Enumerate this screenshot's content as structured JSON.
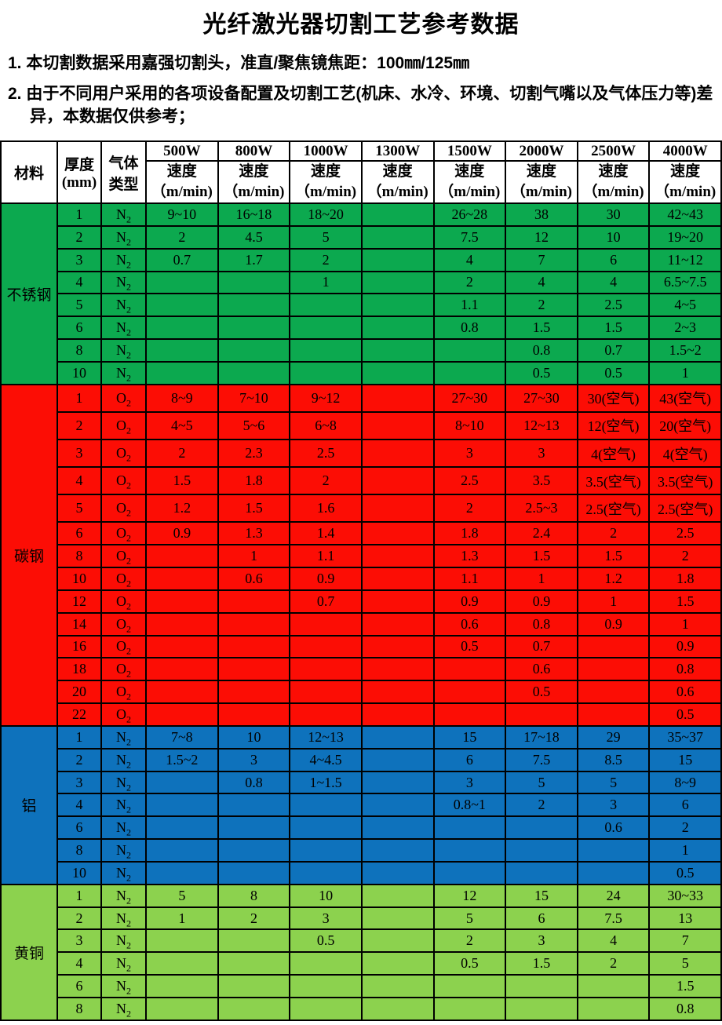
{
  "title": "光纤激光器切割工艺参考数据",
  "notes": [
    "1. 本切割数据采用嘉强切割头，准直/聚焦镜焦距：100㎜/125㎜",
    "2. 由于不同用户采用的各项设备配置及切割工艺(机床、水冷、环境、切割气嘴以及气体压力等)差异，本数据仅供参考；"
  ],
  "table": {
    "header": {
      "material": "材料",
      "thickness": "厚度\n(mm)",
      "gas": "气体\n类型",
      "powers": [
        "500W",
        "800W",
        "1000W",
        "1300W",
        "1500W",
        "2000W",
        "2500W",
        "4000W"
      ],
      "speed": "速度\n（m/min)"
    },
    "sections": [
      {
        "name": "不锈钢",
        "gas": "N2",
        "color": "#0CA94F",
        "rows": [
          {
            "thickness": "1",
            "speeds": [
              "9~10",
              "16~18",
              "18~20",
              "",
              "26~28",
              "38",
              "30",
              "42~43"
            ]
          },
          {
            "thickness": "2",
            "speeds": [
              "2",
              "4.5",
              "5",
              "",
              "7.5",
              "12",
              "10",
              "19~20"
            ]
          },
          {
            "thickness": "3",
            "speeds": [
              "0.7",
              "1.7",
              "2",
              "",
              "4",
              "7",
              "6",
              "11~12"
            ]
          },
          {
            "thickness": "4",
            "speeds": [
              "",
              "",
              "1",
              "",
              "2",
              "4",
              "4",
              "6.5~7.5"
            ]
          },
          {
            "thickness": "5",
            "speeds": [
              "",
              "",
              "",
              "",
              "1.1",
              "2",
              "2.5",
              "4~5"
            ]
          },
          {
            "thickness": "6",
            "speeds": [
              "",
              "",
              "",
              "",
              "0.8",
              "1.5",
              "1.5",
              "2~3"
            ]
          },
          {
            "thickness": "8",
            "speeds": [
              "",
              "",
              "",
              "",
              "",
              "0.8",
              "0.7",
              "1.5~2"
            ]
          },
          {
            "thickness": "10",
            "speeds": [
              "",
              "",
              "",
              "",
              "",
              "0.5",
              "0.5",
              "1"
            ]
          }
        ]
      },
      {
        "name": "碳钢",
        "gas": "O2",
        "color": "#FC0D05",
        "rows": [
          {
            "thickness": "1",
            "speeds": [
              "8~9",
              "7~10",
              "9~12",
              "",
              "27~30",
              "27~30",
              "30(空气)",
              "43(空气)"
            ]
          },
          {
            "thickness": "2",
            "speeds": [
              "4~5",
              "5~6",
              "6~8",
              "",
              "8~10",
              "12~13",
              "12(空气)",
              "20(空气)"
            ]
          },
          {
            "thickness": "3",
            "speeds": [
              "2",
              "2.3",
              "2.5",
              "",
              "3",
              "3",
              "4(空气)",
              "4(空气)"
            ]
          },
          {
            "thickness": "4",
            "speeds": [
              "1.5",
              "1.8",
              "2",
              "",
              "2.5",
              "3.5",
              "3.5(空气)",
              "3.5(空气)"
            ]
          },
          {
            "thickness": "5",
            "speeds": [
              "1.2",
              "1.5",
              "1.6",
              "",
              "2",
              "2.5~3",
              "2.5(空气)",
              "2.5(空气)"
            ]
          },
          {
            "thickness": "6",
            "speeds": [
              "0.9",
              "1.3",
              "1.4",
              "",
              "1.8",
              "2.4",
              "2",
              "2.5"
            ]
          },
          {
            "thickness": "8",
            "speeds": [
              "",
              "1",
              "1.1",
              "",
              "1.3",
              "1.5",
              "1.5",
              "2"
            ]
          },
          {
            "thickness": "10",
            "speeds": [
              "",
              "0.6",
              "0.9",
              "",
              "1.1",
              "1",
              "1.2",
              "1.8"
            ]
          },
          {
            "thickness": "12",
            "speeds": [
              "",
              "",
              "0.7",
              "",
              "0.9",
              "0.9",
              "1",
              "1.5"
            ]
          },
          {
            "thickness": "14",
            "speeds": [
              "",
              "",
              "",
              "",
              "0.6",
              "0.8",
              "0.9",
              "1"
            ]
          },
          {
            "thickness": "16",
            "speeds": [
              "",
              "",
              "",
              "",
              "0.5",
              "0.7",
              "",
              "0.9"
            ]
          },
          {
            "thickness": "18",
            "speeds": [
              "",
              "",
              "",
              "",
              "",
              "0.6",
              "",
              "0.8"
            ]
          },
          {
            "thickness": "20",
            "speeds": [
              "",
              "",
              "",
              "",
              "",
              "0.5",
              "",
              "0.6"
            ]
          },
          {
            "thickness": "22",
            "speeds": [
              "",
              "",
              "",
              "",
              "",
              "",
              "",
              "0.5"
            ]
          }
        ]
      },
      {
        "name": "铝",
        "gas": "N2",
        "color": "#0E72BC",
        "rows": [
          {
            "thickness": "1",
            "speeds": [
              "7~8",
              "10",
              "12~13",
              "",
              "15",
              "17~18",
              "29",
              "35~37"
            ]
          },
          {
            "thickness": "2",
            "speeds": [
              "1.5~2",
              "3",
              "4~4.5",
              "",
              "6",
              "7.5",
              "8.5",
              "15"
            ]
          },
          {
            "thickness": "3",
            "speeds": [
              "",
              "0.8",
              "1~1.5",
              "",
              "3",
              "5",
              "5",
              "8~9"
            ]
          },
          {
            "thickness": "4",
            "speeds": [
              "",
              "",
              "",
              "",
              "0.8~1",
              "2",
              "3",
              "6"
            ]
          },
          {
            "thickness": "6",
            "speeds": [
              "",
              "",
              "",
              "",
              "",
              "",
              "0.6",
              "2"
            ]
          },
          {
            "thickness": "8",
            "speeds": [
              "",
              "",
              "",
              "",
              "",
              "",
              "",
              "1"
            ]
          },
          {
            "thickness": "10",
            "speeds": [
              "",
              "",
              "",
              "",
              "",
              "",
              "",
              "0.5"
            ]
          }
        ]
      },
      {
        "name": "黄铜",
        "gas": "N2",
        "color": "#8CD24E",
        "rows": [
          {
            "thickness": "1",
            "speeds": [
              "5",
              "8",
              "10",
              "",
              "12",
              "15",
              "24",
              "30~33"
            ]
          },
          {
            "thickness": "2",
            "speeds": [
              "1",
              "2",
              "3",
              "",
              "5",
              "6",
              "7.5",
              "13"
            ]
          },
          {
            "thickness": "3",
            "speeds": [
              "",
              "",
              "0.5",
              "",
              "2",
              "3",
              "4",
              "7"
            ]
          },
          {
            "thickness": "4",
            "speeds": [
              "",
              "",
              "",
              "",
              "0.5",
              "1.5",
              "2",
              "5"
            ]
          },
          {
            "thickness": "6",
            "speeds": [
              "",
              "",
              "",
              "",
              "",
              "",
              "",
              "1.5"
            ]
          },
          {
            "thickness": "8",
            "speeds": [
              "",
              "",
              "",
              "",
              "",
              "",
              "",
              "0.8"
            ]
          }
        ]
      }
    ]
  }
}
